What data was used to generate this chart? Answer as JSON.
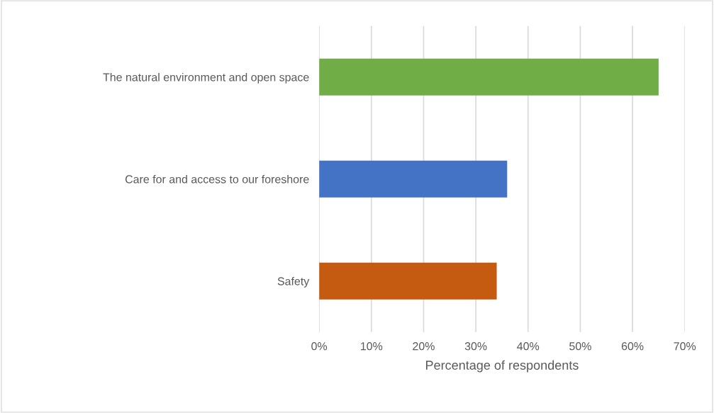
{
  "chart_data": {
    "type": "bar",
    "orientation": "horizontal",
    "xlabel": "Percentage of respondents",
    "categories": [
      "The natural environment and open space",
      "Care for and access to our foreshore",
      "Safety"
    ],
    "values": [
      65,
      36,
      34
    ],
    "colors": [
      "#70ad47",
      "#4472c4",
      "#c55a11"
    ],
    "xlim": [
      0,
      70
    ],
    "xticks": [
      {
        "value": 0,
        "label": "0%"
      },
      {
        "value": 10,
        "label": "10%"
      },
      {
        "value": 20,
        "label": "20%"
      },
      {
        "value": 30,
        "label": "30%"
      },
      {
        "value": 40,
        "label": "40%"
      },
      {
        "value": 50,
        "label": "50%"
      },
      {
        "value": 60,
        "label": "60%"
      },
      {
        "value": 70,
        "label": "70%"
      }
    ],
    "grid": "x",
    "legend": false
  }
}
